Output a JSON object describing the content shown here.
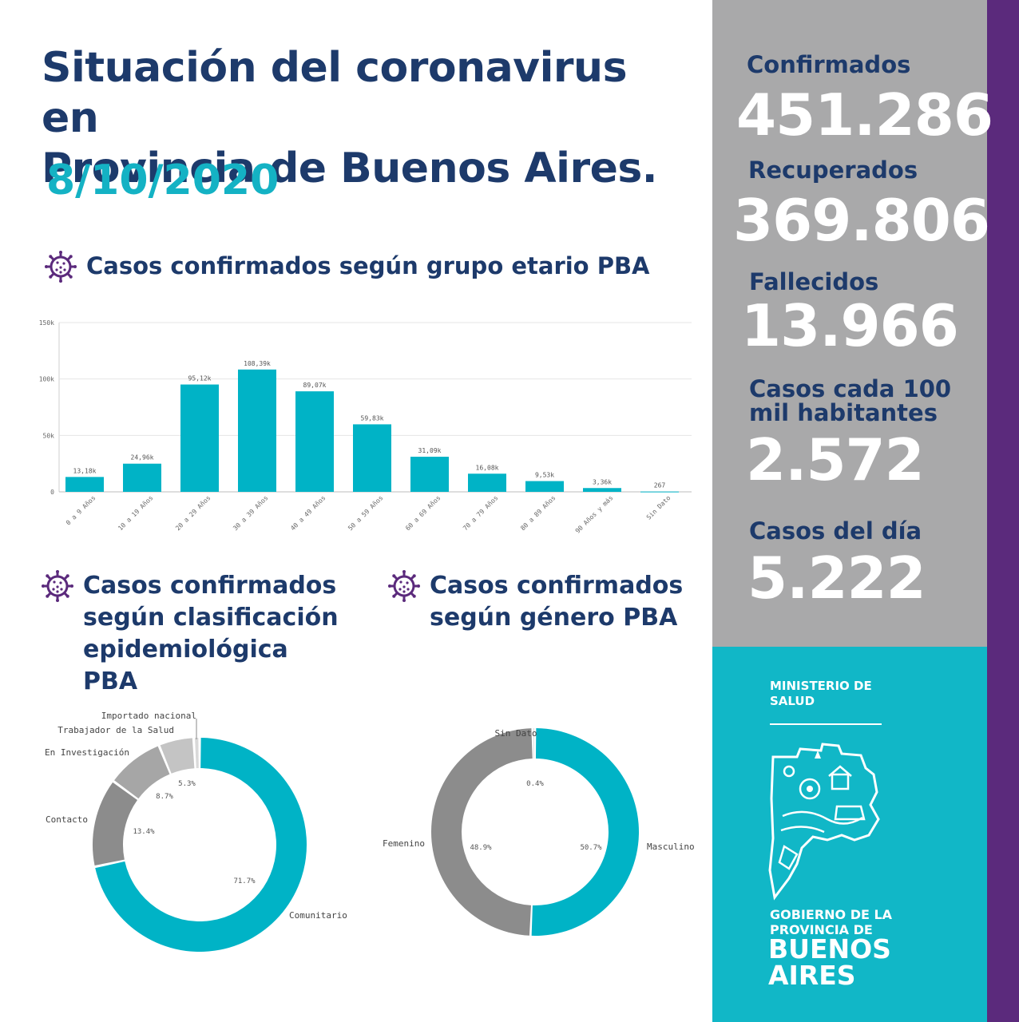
{
  "header": {
    "title_line1": "Situación del coronavirus en",
    "title_line2": "Provincia de Buenos Aires.",
    "date": "8/10/2020"
  },
  "sections": {
    "age": "Casos confirmados según grupo etario PBA",
    "epi_line1": "Casos confirmados",
    "epi_line2": "según clasificación",
    "epi_line3": "epidemiológica PBA",
    "gender_line1": "Casos confirmados",
    "gender_line2": "según género PBA"
  },
  "stats": {
    "confirmados_label": "Confirmados",
    "confirmados_value": "451.286",
    "recuperados_label": "Recuperados",
    "recuperados_value": "369.806",
    "fallecidos_label": "Fallecidos",
    "fallecidos_value": "13.966",
    "tasa_label_line1": "Casos cada 100",
    "tasa_label_line2": "mil habitantes",
    "tasa_value": "2.572",
    "dia_label": "Casos del día",
    "dia_value": "5.222"
  },
  "footer": {
    "ministry_line1": "MINISTERIO DE",
    "ministry_line2": "SALUD",
    "gov_line1": "GOBIERNO DE LA",
    "gov_line2": "PROVINCIA DE",
    "gov_line3": "BUENOS",
    "gov_line4": "AIRES"
  },
  "colors": {
    "teal": "#00b3c6",
    "navy": "#1d3a6b",
    "gray_panel": "#a9a9aa",
    "purple": "#5b2a7c"
  },
  "chart_data": [
    {
      "type": "bar",
      "categories": [
        "0 a 9 Años",
        "10 a 19 Años",
        "20 a 29 Años",
        "30 a 39 Años",
        "40 a 49 Años",
        "50 a 59 Años",
        "60 a 69 Años",
        "70 a 79 Años",
        "80 a 89 Años",
        "90 Años y más",
        "Sin Dato"
      ],
      "values": [
        13180,
        24960,
        95120,
        108390,
        89070,
        59830,
        31090,
        16080,
        9530,
        3360,
        267
      ],
      "data_labels": [
        "13,18k",
        "24,96k",
        "95,12k",
        "108,39k",
        "89,07k",
        "59,83k",
        "31,09k",
        "16,08k",
        "9,53k",
        "3,36k",
        "267"
      ],
      "yticks": [
        0,
        50000,
        100000,
        150000
      ],
      "ytick_labels": [
        "0",
        "50k",
        "100k",
        "150k"
      ],
      "ylim": [
        0,
        150000
      ],
      "grid": true,
      "color": "#00b3c6"
    },
    {
      "type": "pie",
      "donut": true,
      "labels": [
        "Comunitario",
        "Contacto",
        "En Investigación",
        "Trabajador de la Salud",
        "Importado nacional"
      ],
      "values": [
        71.7,
        13.4,
        8.7,
        5.3,
        0.9
      ],
      "pct_labels": [
        "71.7%",
        "13.4%",
        "8.7%",
        "5.3%",
        ""
      ],
      "colors": [
        "#00b3c6",
        "#8c8c8c",
        "#a6a6a6",
        "#c4c4c4",
        "#d9d9d9"
      ]
    },
    {
      "type": "pie",
      "donut": true,
      "labels": [
        "Masculino",
        "Femenino",
        "Sin Dato"
      ],
      "values": [
        50.7,
        48.9,
        0.4
      ],
      "pct_labels": [
        "50.7%",
        "48.9%",
        "0.4%"
      ],
      "colors": [
        "#00b3c6",
        "#8c8c8c",
        "#bdbdbd"
      ]
    }
  ]
}
